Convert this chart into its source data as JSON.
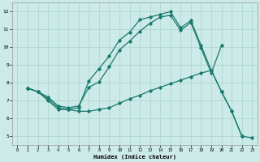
{
  "xlabel": "Humidex (Indice chaleur)",
  "bg_color": "#cceae7",
  "grid_color": "#aad4d0",
  "line_color": "#1a7a6e",
  "xlim": [
    -0.5,
    23.5
  ],
  "ylim": [
    4.5,
    12.5
  ],
  "xticks": [
    0,
    1,
    2,
    3,
    4,
    5,
    6,
    7,
    8,
    9,
    10,
    11,
    12,
    13,
    14,
    15,
    16,
    17,
    18,
    19,
    20,
    21,
    22,
    23
  ],
  "yticks": [
    5,
    6,
    7,
    8,
    9,
    10,
    11,
    12
  ],
  "line1_x": [
    1,
    2,
    3,
    4,
    5,
    6,
    7,
    8,
    9,
    10,
    11,
    12,
    13,
    14,
    15,
    16,
    17,
    18,
    19,
    20,
    21,
    22
  ],
  "line1_y": [
    7.7,
    7.5,
    7.1,
    6.6,
    6.5,
    6.6,
    8.1,
    8.8,
    9.5,
    10.4,
    10.85,
    11.55,
    11.7,
    11.85,
    12.0,
    11.1,
    11.5,
    10.1,
    8.7,
    7.5,
    6.4,
    5.0
  ],
  "line2_x": [
    1,
    2,
    3,
    4,
    5,
    6,
    7,
    8,
    9,
    10,
    11,
    12,
    13,
    14,
    15,
    16,
    17,
    18,
    19,
    20,
    21,
    22,
    23
  ],
  "line2_y": [
    7.7,
    7.5,
    7.2,
    6.7,
    6.6,
    6.7,
    7.75,
    8.05,
    8.9,
    9.85,
    10.35,
    10.9,
    11.35,
    11.7,
    11.8,
    10.95,
    11.4,
    9.95,
    8.55,
    10.1,
    null,
    null,
    null
  ],
  "line3_x": [
    1,
    2,
    3,
    4,
    5,
    6,
    7,
    8,
    9,
    10,
    11,
    12,
    13,
    14,
    15,
    16,
    17,
    18,
    19,
    20,
    21,
    22,
    23
  ],
  "line3_y": [
    7.7,
    7.5,
    7.0,
    6.5,
    6.5,
    6.4,
    6.4,
    6.5,
    6.6,
    6.85,
    7.1,
    7.3,
    7.55,
    7.75,
    7.95,
    8.15,
    8.35,
    8.55,
    8.7,
    7.5,
    6.4,
    5.0,
    4.9
  ]
}
